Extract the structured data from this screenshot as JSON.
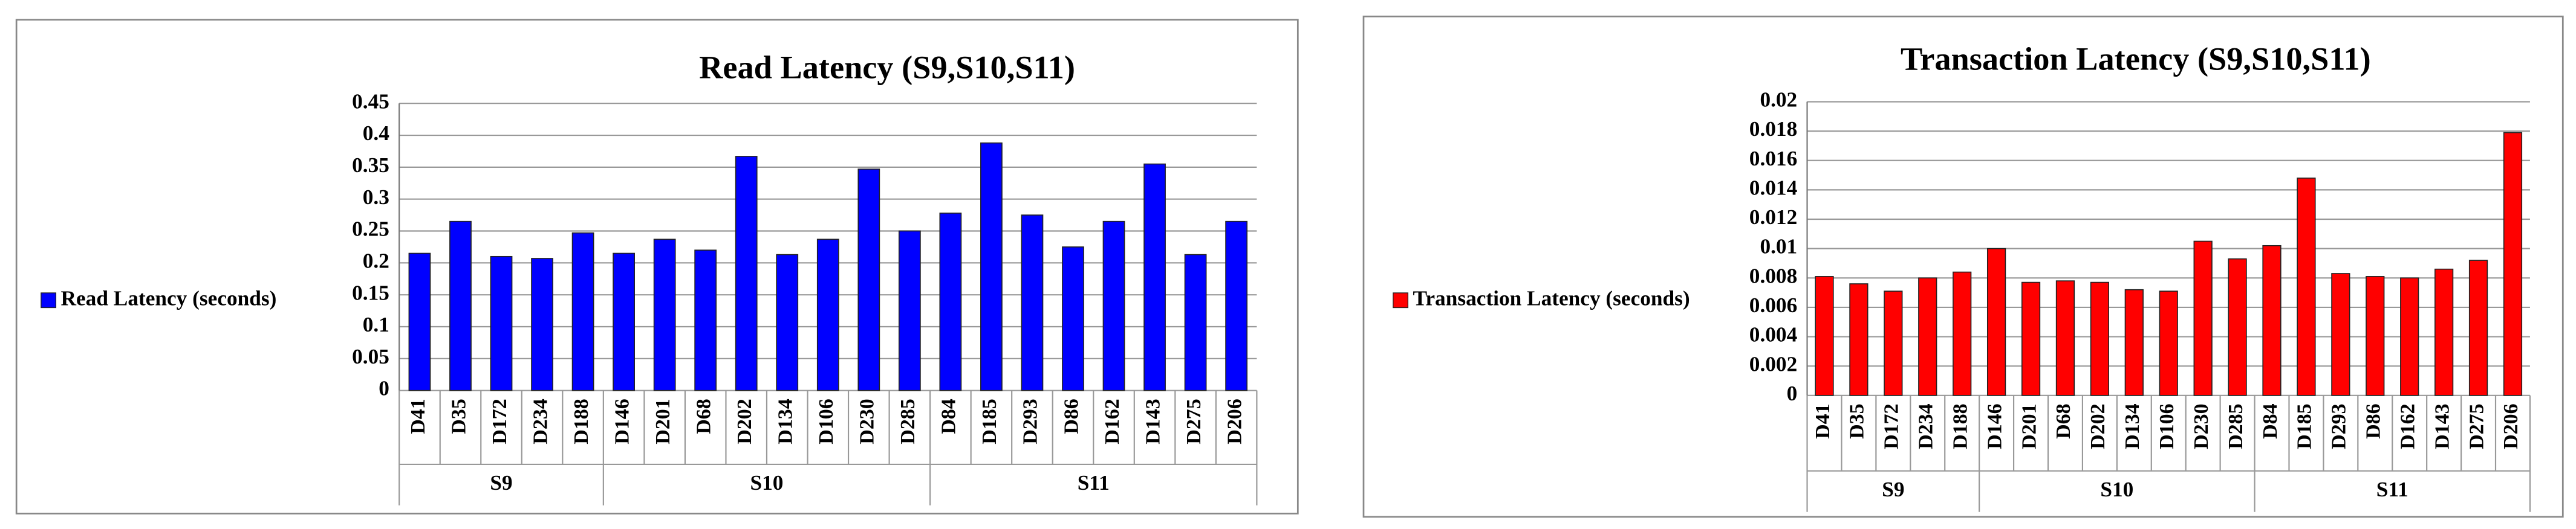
{
  "chart_data": [
    {
      "type": "bar",
      "title": "Read Latency (S9,S10,S11)",
      "groups": [
        {
          "name": "S9",
          "categories": [
            "D41",
            "D35",
            "D172",
            "D234",
            "D188"
          ]
        },
        {
          "name": "S10",
          "categories": [
            "D146",
            "D201",
            "D68",
            "D202",
            "D134",
            "D106",
            "D230",
            "D285"
          ]
        },
        {
          "name": "S11",
          "categories": [
            "D84",
            "D185",
            "D293",
            "D86",
            "D162",
            "D143",
            "D275",
            "D206"
          ]
        }
      ],
      "series": [
        {
          "name": "Read Latency (seconds)",
          "color": "#0000ff",
          "values": [
            0.215,
            0.265,
            0.21,
            0.207,
            0.247,
            0.215,
            0.237,
            0.22,
            0.367,
            0.213,
            0.237,
            0.347,
            0.25,
            0.278,
            0.388,
            0.275,
            0.225,
            0.265,
            0.355,
            0.213,
            0.265
          ]
        }
      ],
      "ylim": [
        0,
        0.45
      ],
      "yticks": [
        0,
        0.05,
        0.1,
        0.15,
        0.2,
        0.25,
        0.3,
        0.35,
        0.4,
        0.45
      ],
      "grid": true,
      "legend": "left"
    },
    {
      "type": "bar",
      "title": "Transaction Latency (S9,S10,S11)",
      "groups": [
        {
          "name": "S9",
          "categories": [
            "D41",
            "D35",
            "D172",
            "D234",
            "D188"
          ]
        },
        {
          "name": "S10",
          "categories": [
            "D146",
            "D201",
            "D68",
            "D202",
            "D134",
            "D106",
            "D230",
            "D285"
          ]
        },
        {
          "name": "S11",
          "categories": [
            "D84",
            "D185",
            "D293",
            "D86",
            "D162",
            "D143",
            "D275",
            "D206"
          ]
        }
      ],
      "series": [
        {
          "name": "Transaction Latency (seconds)",
          "color": "#ff0000",
          "values": [
            0.0081,
            0.0076,
            0.0071,
            0.008,
            0.0084,
            0.01,
            0.0077,
            0.0078,
            0.0077,
            0.0072,
            0.0071,
            0.0105,
            0.0093,
            0.0102,
            0.0148,
            0.0083,
            0.0081,
            0.008,
            0.0086,
            0.0092,
            0.0179
          ]
        }
      ],
      "ylim": [
        0,
        0.02
      ],
      "yticks": [
        0,
        0.002,
        0.004,
        0.006,
        0.008,
        0.01,
        0.012,
        0.014,
        0.016,
        0.018,
        0.02
      ],
      "grid": true,
      "legend": "left"
    }
  ]
}
